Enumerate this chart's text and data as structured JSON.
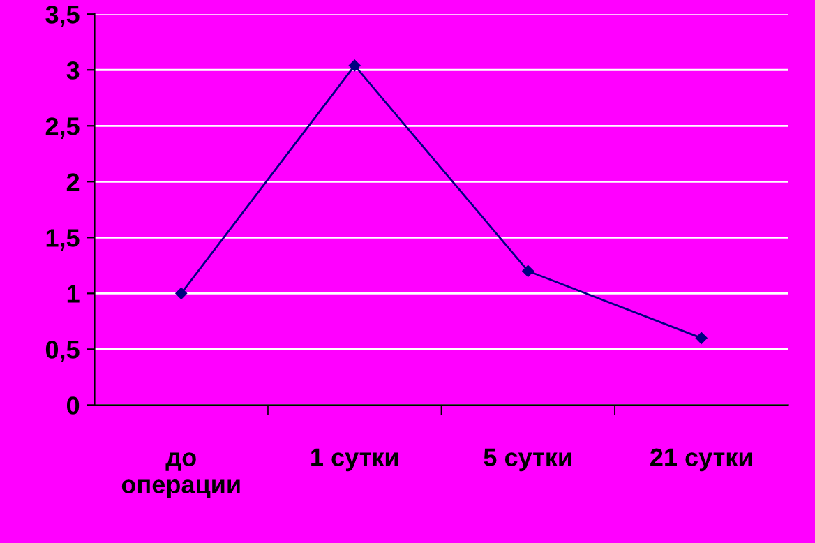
{
  "chart_data": {
    "type": "line",
    "categories": [
      "до\nоперации",
      "1 сутки",
      "5 сутки",
      "21 сутки"
    ],
    "series": [
      {
        "color": "#000080",
        "values": [
          1,
          3.04,
          1.2,
          0.6
        ]
      }
    ],
    "ylim": [
      0,
      3.5
    ],
    "yticks": [
      0,
      {
        "value": 0.5,
        "label": "0,5"
      },
      1,
      {
        "value": 1.5,
        "label": "1,5"
      },
      2,
      {
        "value": 2.5,
        "label": "2,5"
      },
      3,
      {
        "value": 3.5,
        "label": "3,5"
      }
    ],
    "grid": "y",
    "marker": "diamond",
    "line_style": "solid"
  }
}
